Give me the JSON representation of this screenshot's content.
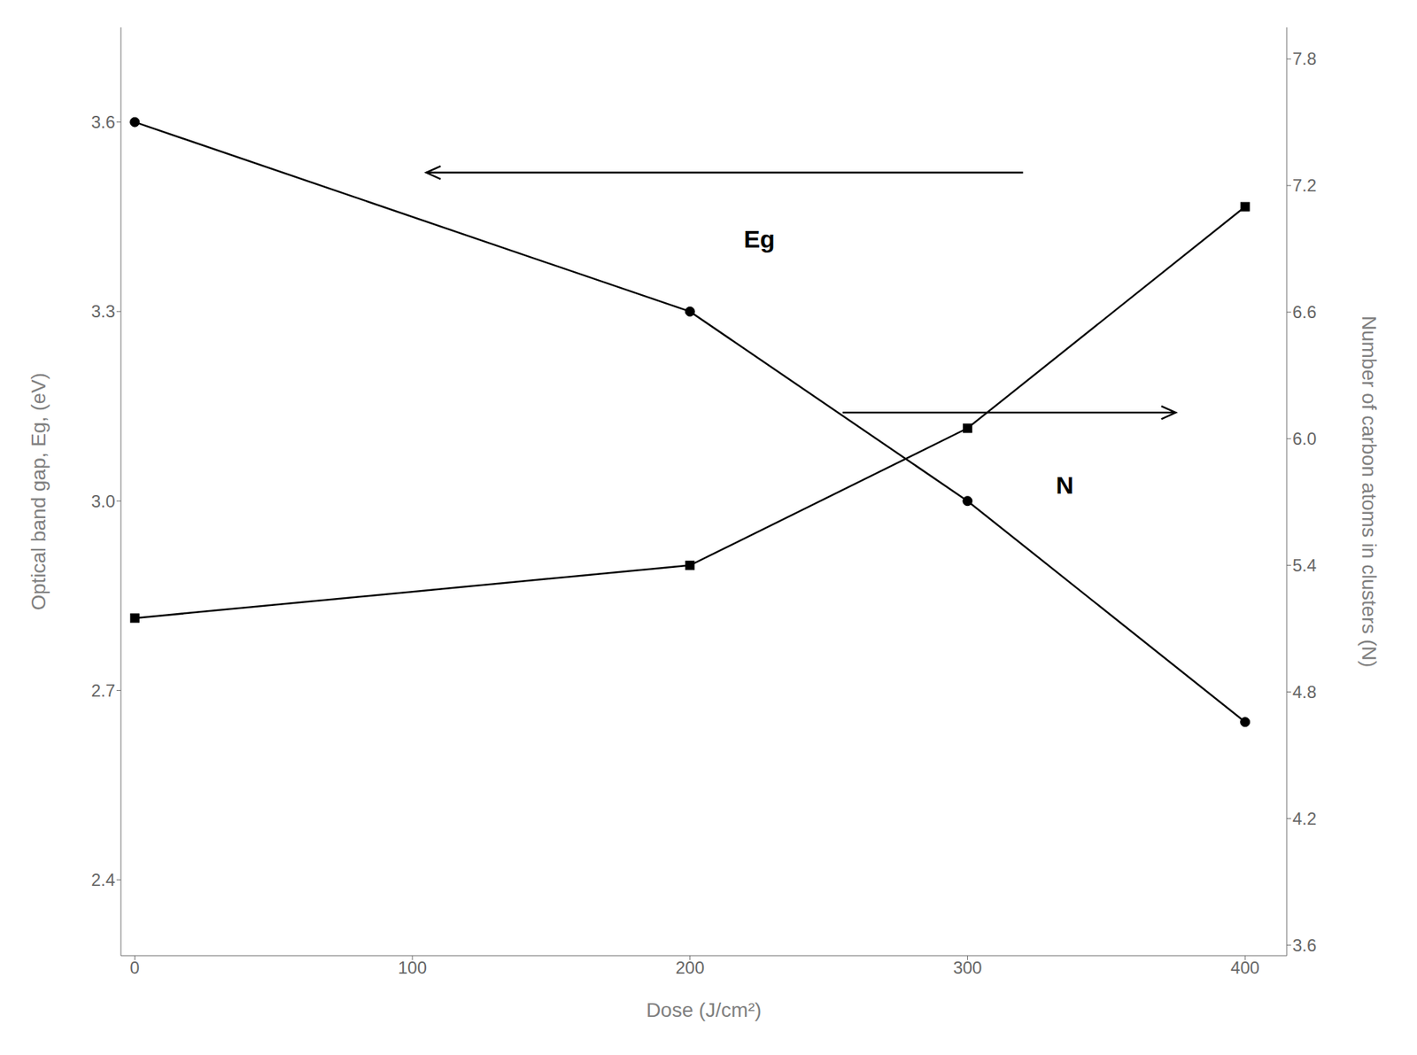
{
  "chart_data": {
    "type": "line",
    "xlabel": "Dose (J/cm²)",
    "ylabel": "Optical band gap, Eg, (eV)",
    "y2label": "Number of carbon atoms in clusters (N)",
    "x": [
      0,
      200,
      300,
      400
    ],
    "series": [
      {
        "color": "#000000",
        "marker": "circle",
        "values": [
          3.6,
          3.3,
          3.0,
          2.65
        ]
      },
      {
        "color": "#000000",
        "marker": "square",
        "axis": "y2",
        "values": [
          5.15,
          5.4,
          6.05,
          7.1
        ]
      }
    ],
    "xlim": [
      -5,
      415
    ],
    "xticks": [
      0,
      100,
      200,
      300,
      400
    ],
    "ylim": [
      2.28,
      3.75
    ],
    "yticks": [
      2.4,
      2.7,
      {
        "value": 3.0,
        "label": "3.0"
      },
      3.3,
      3.6
    ],
    "y2lim": [
      3.55,
      7.95
    ],
    "y2ticks": [
      3.6,
      4.2,
      4.8,
      5.4,
      {
        "value": 6.0,
        "label": "6.0"
      },
      6.6,
      7.2,
      7.8
    ],
    "grid": false,
    "annotations": [
      {
        "text": "Eg",
        "x": 225,
        "y": 3.43,
        "arrow_from": [
          320,
          3.52
        ],
        "arrow_to": [
          105,
          3.52
        ]
      },
      {
        "text": "N",
        "x": 335,
        "y": 3.04,
        "arrow_from": [
          255,
          3.14
        ],
        "arrow_to": [
          375,
          3.14
        ]
      }
    ]
  }
}
